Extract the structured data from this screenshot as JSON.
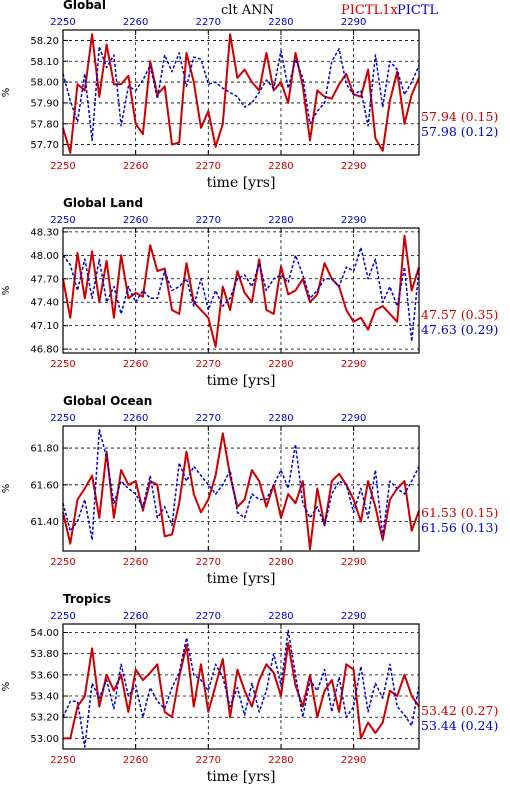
{
  "header": {
    "variable": "clt  ANN",
    "run1": "PICTL1x",
    "run2": "PICTL",
    "run1_color": "#cc0000",
    "run2_color": "#0000cc"
  },
  "chart_data": [
    {
      "type": "line",
      "title": "Global",
      "xlabel": "time [yrs]",
      "ylabel": "%",
      "xlim": [
        2250,
        2299
      ],
      "ylim": [
        57.65,
        58.25
      ],
      "xticks": [
        2250,
        2260,
        2270,
        2280,
        2290
      ],
      "yticks": [
        "57.70",
        "57.80",
        "57.90",
        "58.00",
        "58.10",
        "58.20"
      ],
      "stats": [
        {
          "series": "PICTL1x",
          "mean": "57.94",
          "std": "(0.15)"
        },
        {
          "series": "PICTL",
          "mean": "57.98",
          "std": "(0.12)"
        }
      ],
      "x": [
        2250,
        2251,
        2252,
        2253,
        2254,
        2255,
        2256,
        2257,
        2258,
        2259,
        2260,
        2261,
        2262,
        2263,
        2264,
        2265,
        2266,
        2267,
        2268,
        2269,
        2270,
        2271,
        2272,
        2273,
        2274,
        2275,
        2276,
        2277,
        2278,
        2279,
        2280,
        2281,
        2282,
        2283,
        2284,
        2285,
        2286,
        2287,
        2288,
        2289,
        2290,
        2291,
        2292,
        2293,
        2294,
        2295,
        2296,
        2297,
        2298,
        2299
      ],
      "series": [
        {
          "name": "PICTL1x",
          "color": "#cc0000",
          "dash": "solid",
          "values": [
            57.78,
            57.66,
            57.99,
            57.96,
            58.23,
            57.93,
            58.18,
            57.99,
            57.99,
            58.03,
            57.8,
            57.75,
            58.1,
            57.94,
            57.98,
            57.7,
            57.71,
            58.14,
            58.0,
            57.78,
            57.86,
            57.69,
            57.8,
            58.23,
            58.02,
            58.06,
            58.0,
            57.96,
            58.14,
            57.96,
            58.0,
            57.9,
            58.14,
            57.98,
            57.72,
            57.96,
            57.93,
            57.92,
            57.99,
            58.04,
            57.94,
            57.93,
            58.06,
            57.73,
            57.67,
            57.91,
            58.05,
            57.8,
            57.94,
            58.02
          ]
        },
        {
          "name": "PICTL",
          "color": "#0000cc",
          "dash": "dashed",
          "values": [
            58.04,
            57.91,
            57.81,
            58.04,
            57.72,
            58.17,
            58.07,
            58.13,
            57.79,
            57.98,
            57.96,
            58.01,
            58.08,
            57.92,
            58.13,
            58.05,
            58.14,
            57.98,
            58.12,
            58.11,
            57.99,
            58.0,
            57.97,
            57.95,
            57.93,
            57.88,
            57.9,
            57.95,
            58.01,
            57.97,
            58.15,
            57.97,
            58.11,
            58.02,
            57.8,
            57.86,
            57.9,
            58.1,
            58.16,
            57.99,
            57.94,
            57.96,
            57.79,
            58.13,
            57.88,
            58.1,
            58.06,
            57.94,
            58.0,
            58.08
          ]
        }
      ]
    },
    {
      "type": "line",
      "title": "Global Land",
      "xlabel": "time [yrs]",
      "ylabel": "%",
      "xlim": [
        2250,
        2299
      ],
      "ylim": [
        46.75,
        48.35
      ],
      "xticks": [
        2250,
        2260,
        2270,
        2280,
        2290
      ],
      "yticks": [
        "46.80",
        "47.10",
        "47.40",
        "47.70",
        "48.00",
        "48.30"
      ],
      "stats": [
        {
          "series": "PICTL1x",
          "mean": "47.57",
          "std": "(0.35)"
        },
        {
          "series": "PICTL",
          "mean": "47.63",
          "std": "(0.29)"
        }
      ],
      "x": [
        2250,
        2251,
        2252,
        2253,
        2254,
        2255,
        2256,
        2257,
        2258,
        2259,
        2260,
        2261,
        2262,
        2263,
        2264,
        2265,
        2266,
        2267,
        2268,
        2269,
        2270,
        2271,
        2272,
        2273,
        2274,
        2275,
        2276,
        2277,
        2278,
        2279,
        2280,
        2281,
        2282,
        2283,
        2284,
        2285,
        2286,
        2287,
        2288,
        2289,
        2290,
        2291,
        2292,
        2293,
        2294,
        2295,
        2296,
        2297,
        2298,
        2299
      ],
      "series": [
        {
          "name": "PICTL1x",
          "color": "#cc0000",
          "dash": "solid",
          "values": [
            47.7,
            47.2,
            48.03,
            47.45,
            48.05,
            47.4,
            47.93,
            47.2,
            48.0,
            47.45,
            47.52,
            47.47,
            48.13,
            47.8,
            47.83,
            47.3,
            47.25,
            47.9,
            47.4,
            47.3,
            47.2,
            46.83,
            47.6,
            47.3,
            47.8,
            47.52,
            47.4,
            47.95,
            47.3,
            47.25,
            47.86,
            47.5,
            47.55,
            47.7,
            47.4,
            47.5,
            47.9,
            47.7,
            47.6,
            47.3,
            47.15,
            47.2,
            47.05,
            47.3,
            47.35,
            47.25,
            47.15,
            48.25,
            47.55,
            47.85
          ]
        },
        {
          "name": "PICTL",
          "color": "#0000cc",
          "dash": "dashed",
          "values": [
            48.0,
            47.88,
            47.55,
            47.95,
            47.45,
            47.95,
            47.4,
            47.6,
            47.25,
            47.6,
            47.4,
            47.55,
            47.45,
            47.45,
            47.8,
            47.55,
            47.6,
            47.7,
            47.35,
            47.7,
            47.3,
            47.55,
            47.35,
            47.45,
            47.7,
            47.75,
            47.6,
            47.9,
            47.55,
            47.7,
            47.75,
            47.65,
            48.0,
            47.75,
            47.45,
            47.55,
            47.7,
            47.7,
            47.6,
            47.85,
            47.8,
            48.1,
            47.7,
            47.95,
            47.4,
            47.6,
            47.35,
            47.85,
            46.9,
            47.83
          ]
        }
      ]
    },
    {
      "type": "line",
      "title": "Global Ocean",
      "xlabel": "time [yrs]",
      "ylabel": "%",
      "xlim": [
        2250,
        2299
      ],
      "ylim": [
        61.24,
        61.92
      ],
      "xticks": [
        2250,
        2260,
        2270,
        2280,
        2290
      ],
      "yticks": [
        "61.40",
        "61.60",
        "61.80"
      ],
      "stats": [
        {
          "series": "PICTL1x",
          "mean": "61.53",
          "std": "(0.15)"
        },
        {
          "series": "PICTL",
          "mean": "61.56",
          "std": "(0.13)"
        }
      ],
      "x": [
        2250,
        2251,
        2252,
        2253,
        2254,
        2255,
        2256,
        2257,
        2258,
        2259,
        2260,
        2261,
        2262,
        2263,
        2264,
        2265,
        2266,
        2267,
        2268,
        2269,
        2270,
        2271,
        2272,
        2273,
        2274,
        2275,
        2276,
        2277,
        2278,
        2279,
        2280,
        2281,
        2282,
        2283,
        2284,
        2285,
        2286,
        2287,
        2288,
        2289,
        2290,
        2291,
        2292,
        2293,
        2294,
        2295,
        2296,
        2297,
        2298,
        2299
      ],
      "series": [
        {
          "name": "PICTL1x",
          "color": "#cc0000",
          "dash": "solid",
          "values": [
            61.45,
            61.28,
            61.52,
            61.58,
            61.65,
            61.42,
            61.78,
            61.42,
            61.68,
            61.6,
            61.62,
            61.46,
            61.62,
            61.6,
            61.32,
            61.33,
            61.5,
            61.78,
            61.55,
            61.45,
            61.52,
            61.65,
            61.88,
            61.65,
            61.48,
            61.52,
            61.68,
            61.62,
            61.48,
            61.6,
            61.42,
            61.55,
            61.5,
            61.62,
            61.25,
            61.58,
            61.38,
            61.62,
            61.66,
            61.6,
            61.52,
            61.4,
            61.62,
            61.48,
            61.3,
            61.52,
            61.58,
            61.62,
            61.35,
            61.46
          ]
        },
        {
          "name": "PICTL",
          "color": "#0000cc",
          "dash": "dashed",
          "values": [
            61.5,
            61.35,
            61.4,
            61.52,
            61.3,
            61.9,
            61.75,
            61.5,
            61.62,
            61.58,
            61.55,
            61.48,
            61.65,
            61.42,
            61.48,
            61.38,
            61.72,
            61.62,
            61.7,
            61.65,
            61.6,
            61.55,
            61.6,
            61.68,
            61.45,
            61.42,
            61.55,
            61.52,
            61.52,
            61.6,
            61.68,
            61.58,
            61.82,
            61.5,
            61.42,
            61.48,
            61.38,
            61.55,
            61.62,
            61.6,
            61.45,
            61.58,
            61.42,
            61.68,
            61.32,
            61.62,
            61.58,
            61.55,
            61.62,
            61.7
          ]
        }
      ]
    },
    {
      "type": "line",
      "title": "Tropics",
      "xlabel": "time [yrs]",
      "ylabel": "%",
      "xlim": [
        2250,
        2299
      ],
      "ylim": [
        52.9,
        54.08
      ],
      "xticks": [
        2250,
        2260,
        2270,
        2280,
        2290
      ],
      "yticks": [
        "53.00",
        "53.20",
        "53.40",
        "53.60",
        "53.80",
        "54.00"
      ],
      "stats": [
        {
          "series": "PICTL1x",
          "mean": "53.42",
          "std": "(0.27)"
        },
        {
          "series": "PICTL",
          "mean": "53.44",
          "std": "(0.24)"
        }
      ],
      "x": [
        2250,
        2251,
        2252,
        2253,
        2254,
        2255,
        2256,
        2257,
        2258,
        2259,
        2260,
        2261,
        2262,
        2263,
        2264,
        2265,
        2266,
        2267,
        2268,
        2269,
        2270,
        2271,
        2272,
        2273,
        2274,
        2275,
        2276,
        2277,
        2278,
        2279,
        2280,
        2281,
        2282,
        2283,
        2284,
        2285,
        2286,
        2287,
        2288,
        2289,
        2290,
        2291,
        2292,
        2293,
        2294,
        2295,
        2296,
        2297,
        2298,
        2299
      ],
      "series": [
        {
          "name": "PICTL1x",
          "color": "#cc0000",
          "dash": "solid",
          "values": [
            53.0,
            53.0,
            53.3,
            53.4,
            53.85,
            53.3,
            53.6,
            53.45,
            53.6,
            53.25,
            53.65,
            53.55,
            53.62,
            53.7,
            53.25,
            53.2,
            53.58,
            53.88,
            53.3,
            53.7,
            53.25,
            53.5,
            53.75,
            53.2,
            53.65,
            53.45,
            53.3,
            53.55,
            53.7,
            53.62,
            53.4,
            53.9,
            53.5,
            53.3,
            53.6,
            53.2,
            53.45,
            53.55,
            53.25,
            53.7,
            53.65,
            53.0,
            53.15,
            53.05,
            53.15,
            53.45,
            53.4,
            53.6,
            53.4,
            53.3
          ]
        },
        {
          "name": "PICTL",
          "color": "#0000cc",
          "dash": "dashed",
          "values": [
            53.2,
            53.35,
            53.35,
            52.92,
            53.52,
            53.38,
            53.55,
            53.28,
            53.7,
            53.4,
            53.5,
            53.2,
            53.48,
            53.35,
            53.28,
            53.48,
            53.62,
            53.95,
            53.6,
            53.55,
            53.45,
            53.7,
            53.58,
            53.3,
            53.48,
            53.22,
            53.52,
            53.25,
            53.45,
            53.8,
            53.5,
            54.02,
            53.6,
            53.2,
            53.55,
            53.45,
            53.65,
            53.25,
            53.58,
            53.2,
            53.3,
            53.68,
            53.25,
            53.52,
            53.38,
            53.7,
            53.3,
            53.22,
            53.12,
            53.5
          ]
        }
      ]
    }
  ]
}
